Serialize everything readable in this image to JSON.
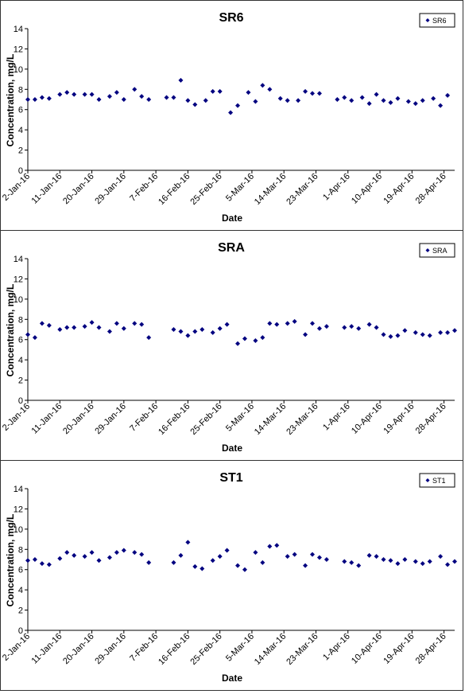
{
  "chart_data": [
    {
      "type": "scatter",
      "title": "SR6",
      "xlabel": "Date",
      "ylabel": "Concentration, mg/L",
      "ylim": [
        0,
        14
      ],
      "y_ticks": [
        0,
        2,
        4,
        6,
        8,
        10,
        12,
        14
      ],
      "x_ticks": [
        "2-Jan-16",
        "11-Jan-16",
        "20-Jan-16",
        "29-Jan-16",
        "7-Feb-16",
        "16-Feb-16",
        "25-Feb-16",
        "5-Mar-16",
        "14-Mar-16",
        "23-Mar-16",
        "1-Apr-16",
        "10-Apr-16",
        "19-Apr-16",
        "28-Apr-16"
      ],
      "grid": false,
      "legend_position": "top-right",
      "marker_color": "#000080",
      "series": [
        {
          "name": "SR6",
          "points": [
            [
              "2-Jan-16",
              7.0
            ],
            [
              "4-Jan-16",
              7.0
            ],
            [
              "6-Jan-16",
              7.2
            ],
            [
              "8-Jan-16",
              7.1
            ],
            [
              "11-Jan-16",
              7.5
            ],
            [
              "13-Jan-16",
              7.7
            ],
            [
              "15-Jan-16",
              7.5
            ],
            [
              "18-Jan-16",
              7.5
            ],
            [
              "20-Jan-16",
              7.5
            ],
            [
              "22-Jan-16",
              7.0
            ],
            [
              "25-Jan-16",
              7.3
            ],
            [
              "27-Jan-16",
              7.7
            ],
            [
              "29-Jan-16",
              7.0
            ],
            [
              "1-Feb-16",
              8.0
            ],
            [
              "3-Feb-16",
              7.3
            ],
            [
              "5-Feb-16",
              7.0
            ],
            [
              "10-Feb-16",
              7.2
            ],
            [
              "12-Feb-16",
              7.2
            ],
            [
              "14-Feb-16",
              8.9
            ],
            [
              "16-Feb-16",
              6.9
            ],
            [
              "18-Feb-16",
              6.5
            ],
            [
              "21-Feb-16",
              6.9
            ],
            [
              "23-Feb-16",
              7.8
            ],
            [
              "25-Feb-16",
              7.8
            ],
            [
              "28-Feb-16",
              5.7
            ],
            [
              "1-Mar-16",
              6.4
            ],
            [
              "4-Mar-16",
              7.7
            ],
            [
              "6-Mar-16",
              6.8
            ],
            [
              "8-Mar-16",
              8.4
            ],
            [
              "10-Mar-16",
              8.0
            ],
            [
              "13-Mar-16",
              7.1
            ],
            [
              "15-Mar-16",
              6.9
            ],
            [
              "18-Mar-16",
              6.9
            ],
            [
              "20-Mar-16",
              7.8
            ],
            [
              "22-Mar-16",
              7.6
            ],
            [
              "24-Mar-16",
              7.6
            ],
            [
              "29-Mar-16",
              7.0
            ],
            [
              "31-Mar-16",
              7.2
            ],
            [
              "2-Apr-16",
              6.9
            ],
            [
              "5-Apr-16",
              7.2
            ],
            [
              "7-Apr-16",
              6.6
            ],
            [
              "9-Apr-16",
              7.5
            ],
            [
              "11-Apr-16",
              6.9
            ],
            [
              "13-Apr-16",
              6.7
            ],
            [
              "15-Apr-16",
              7.1
            ],
            [
              "18-Apr-16",
              6.8
            ],
            [
              "20-Apr-16",
              6.6
            ],
            [
              "22-Apr-16",
              6.9
            ],
            [
              "25-Apr-16",
              7.1
            ],
            [
              "27-Apr-16",
              6.4
            ],
            [
              "29-Apr-16",
              7.4
            ]
          ]
        }
      ]
    },
    {
      "type": "scatter",
      "title": "SRA",
      "xlabel": "Date",
      "ylabel": "Concentration, mg/L",
      "ylim": [
        0,
        14
      ],
      "y_ticks": [
        0,
        2,
        4,
        6,
        8,
        10,
        12,
        14
      ],
      "x_ticks": [
        "2-Jan-16",
        "11-Jan-16",
        "20-Jan-16",
        "29-Jan-16",
        "7-Feb-16",
        "16-Feb-16",
        "25-Feb-16",
        "5-Mar-16",
        "14-Mar-16",
        "23-Mar-16",
        "1-Apr-16",
        "10-Apr-16",
        "19-Apr-16",
        "28-Apr-16"
      ],
      "grid": false,
      "legend_position": "top-right",
      "marker_color": "#000080",
      "series": [
        {
          "name": "SRA",
          "points": [
            [
              "2-Jan-16",
              6.5
            ],
            [
              "4-Jan-16",
              6.2
            ],
            [
              "6-Jan-16",
              7.6
            ],
            [
              "8-Jan-16",
              7.4
            ],
            [
              "11-Jan-16",
              7.0
            ],
            [
              "13-Jan-16",
              7.2
            ],
            [
              "15-Jan-16",
              7.2
            ],
            [
              "18-Jan-16",
              7.3
            ],
            [
              "20-Jan-16",
              7.7
            ],
            [
              "22-Jan-16",
              7.2
            ],
            [
              "25-Jan-16",
              6.8
            ],
            [
              "27-Jan-16",
              7.6
            ],
            [
              "29-Jan-16",
              7.1
            ],
            [
              "1-Feb-16",
              7.6
            ],
            [
              "3-Feb-16",
              7.5
            ],
            [
              "5-Feb-16",
              6.2
            ],
            [
              "12-Feb-16",
              7.0
            ],
            [
              "14-Feb-16",
              6.8
            ],
            [
              "16-Feb-16",
              6.4
            ],
            [
              "18-Feb-16",
              6.8
            ],
            [
              "20-Feb-16",
              7.0
            ],
            [
              "23-Feb-16",
              6.7
            ],
            [
              "25-Feb-16",
              7.1
            ],
            [
              "27-Feb-16",
              7.5
            ],
            [
              "1-Mar-16",
              5.6
            ],
            [
              "3-Mar-16",
              6.1
            ],
            [
              "6-Mar-16",
              5.9
            ],
            [
              "8-Mar-16",
              6.2
            ],
            [
              "10-Mar-16",
              7.6
            ],
            [
              "12-Mar-16",
              7.5
            ],
            [
              "15-Mar-16",
              7.6
            ],
            [
              "17-Mar-16",
              7.8
            ],
            [
              "20-Mar-16",
              6.5
            ],
            [
              "22-Mar-16",
              7.6
            ],
            [
              "24-Mar-16",
              7.1
            ],
            [
              "26-Mar-16",
              7.3
            ],
            [
              "31-Mar-16",
              7.2
            ],
            [
              "2-Apr-16",
              7.3
            ],
            [
              "4-Apr-16",
              7.1
            ],
            [
              "7-Apr-16",
              7.5
            ],
            [
              "9-Apr-16",
              7.2
            ],
            [
              "11-Apr-16",
              6.5
            ],
            [
              "13-Apr-16",
              6.3
            ],
            [
              "15-Apr-16",
              6.4
            ],
            [
              "17-Apr-16",
              6.9
            ],
            [
              "20-Apr-16",
              6.7
            ],
            [
              "22-Apr-16",
              6.5
            ],
            [
              "24-Apr-16",
              6.4
            ],
            [
              "27-Apr-16",
              6.7
            ],
            [
              "29-Apr-16",
              6.7
            ],
            [
              "1-May-16",
              6.9
            ]
          ]
        }
      ]
    },
    {
      "type": "scatter",
      "title": "ST1",
      "xlabel": "Date",
      "ylabel": "Concentration, mg/L",
      "ylim": [
        0,
        14
      ],
      "y_ticks": [
        0,
        2,
        4,
        6,
        8,
        10,
        12,
        14
      ],
      "x_ticks": [
        "2-Jan-16",
        "11-Jan-16",
        "20-Jan-16",
        "29-Jan-16",
        "7-Feb-16",
        "16-Feb-16",
        "25-Feb-16",
        "5-Mar-16",
        "14-Mar-16",
        "23-Mar-16",
        "1-Apr-16",
        "10-Apr-16",
        "19-Apr-16",
        "28-Apr-16"
      ],
      "grid": false,
      "legend_position": "top-right",
      "marker_color": "#000080",
      "series": [
        {
          "name": "ST1",
          "points": [
            [
              "2-Jan-16",
              6.9
            ],
            [
              "4-Jan-16",
              7.0
            ],
            [
              "6-Jan-16",
              6.6
            ],
            [
              "8-Jan-16",
              6.5
            ],
            [
              "11-Jan-16",
              7.1
            ],
            [
              "13-Jan-16",
              7.7
            ],
            [
              "15-Jan-16",
              7.4
            ],
            [
              "18-Jan-16",
              7.3
            ],
            [
              "20-Jan-16",
              7.7
            ],
            [
              "22-Jan-16",
              6.9
            ],
            [
              "25-Jan-16",
              7.2
            ],
            [
              "27-Jan-16",
              7.7
            ],
            [
              "29-Jan-16",
              7.9
            ],
            [
              "1-Feb-16",
              7.7
            ],
            [
              "3-Feb-16",
              7.5
            ],
            [
              "5-Feb-16",
              6.7
            ],
            [
              "12-Feb-16",
              6.7
            ],
            [
              "14-Feb-16",
              7.4
            ],
            [
              "16-Feb-16",
              8.7
            ],
            [
              "18-Feb-16",
              6.3
            ],
            [
              "20-Feb-16",
              6.1
            ],
            [
              "23-Feb-16",
              6.9
            ],
            [
              "25-Feb-16",
              7.3
            ],
            [
              "27-Feb-16",
              7.9
            ],
            [
              "1-Mar-16",
              6.4
            ],
            [
              "3-Mar-16",
              6.0
            ],
            [
              "6-Mar-16",
              7.7
            ],
            [
              "8-Mar-16",
              6.7
            ],
            [
              "10-Mar-16",
              8.3
            ],
            [
              "12-Mar-16",
              8.4
            ],
            [
              "15-Mar-16",
              7.3
            ],
            [
              "17-Mar-16",
              7.5
            ],
            [
              "20-Mar-16",
              6.4
            ],
            [
              "22-Mar-16",
              7.5
            ],
            [
              "24-Mar-16",
              7.2
            ],
            [
              "26-Mar-16",
              7.0
            ],
            [
              "31-Mar-16",
              6.8
            ],
            [
              "2-Apr-16",
              6.7
            ],
            [
              "4-Apr-16",
              6.4
            ],
            [
              "7-Apr-16",
              7.4
            ],
            [
              "9-Apr-16",
              7.3
            ],
            [
              "11-Apr-16",
              7.0
            ],
            [
              "13-Apr-16",
              6.9
            ],
            [
              "15-Apr-16",
              6.6
            ],
            [
              "17-Apr-16",
              7.0
            ],
            [
              "20-Apr-16",
              6.8
            ],
            [
              "22-Apr-16",
              6.6
            ],
            [
              "24-Apr-16",
              6.8
            ],
            [
              "27-Apr-16",
              7.3
            ],
            [
              "29-Apr-16",
              6.5
            ],
            [
              "1-May-16",
              6.8
            ]
          ]
        }
      ]
    }
  ]
}
